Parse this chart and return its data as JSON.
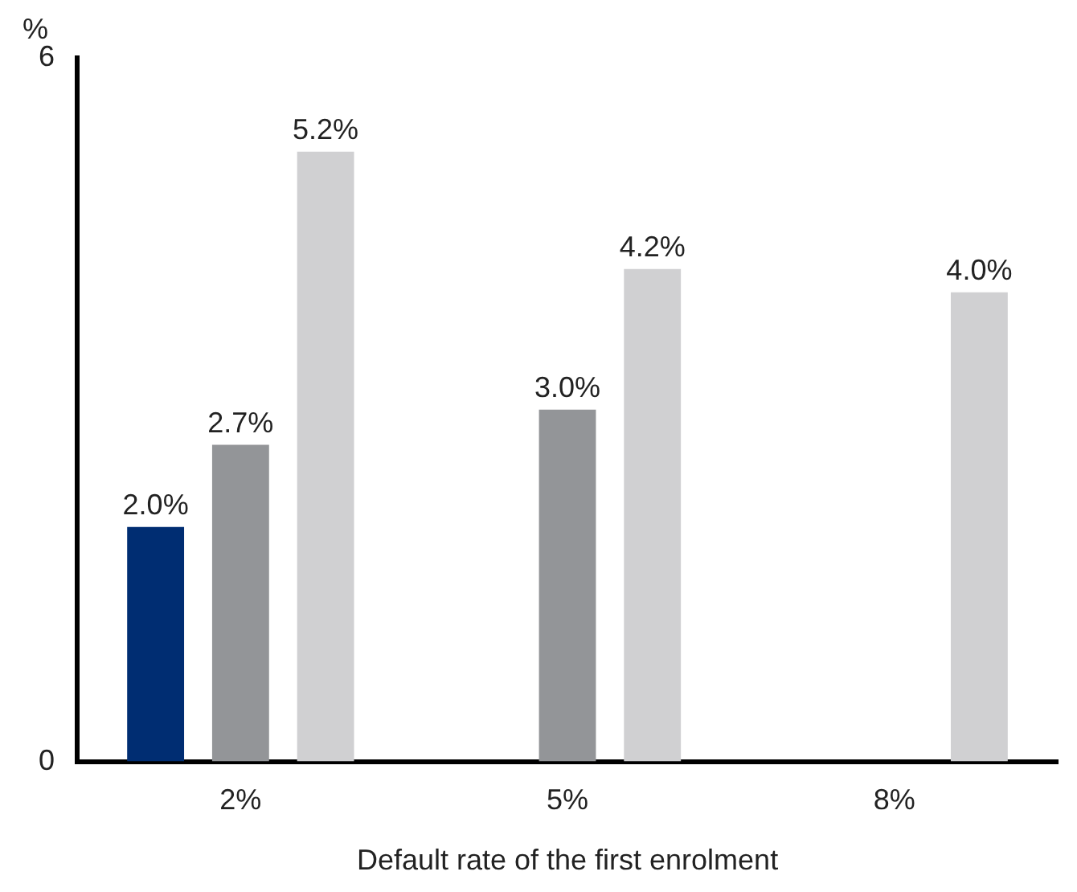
{
  "chart_data": {
    "type": "bar",
    "ylabel": "%",
    "xlabel": "Default rate of the first enrolment",
    "categories": [
      "2%",
      "5%",
      "8%"
    ],
    "series": [
      {
        "color": "#002d72",
        "values": [
          2.0,
          null,
          null
        ],
        "value_labels": [
          "2.0%",
          null,
          null
        ]
      },
      {
        "color": "#939598",
        "values": [
          2.7,
          3.0,
          null
        ],
        "value_labels": [
          "2.7%",
          "3.0%",
          null
        ]
      },
      {
        "color": "#d0d0d2",
        "values": [
          5.2,
          4.2,
          4.0
        ],
        "value_labels": [
          "5.2%",
          "4.2%",
          "4.0%"
        ]
      }
    ],
    "ylim": [
      0,
      6
    ],
    "yticks": [
      0,
      6
    ],
    "grid": false,
    "legend": false
  }
}
